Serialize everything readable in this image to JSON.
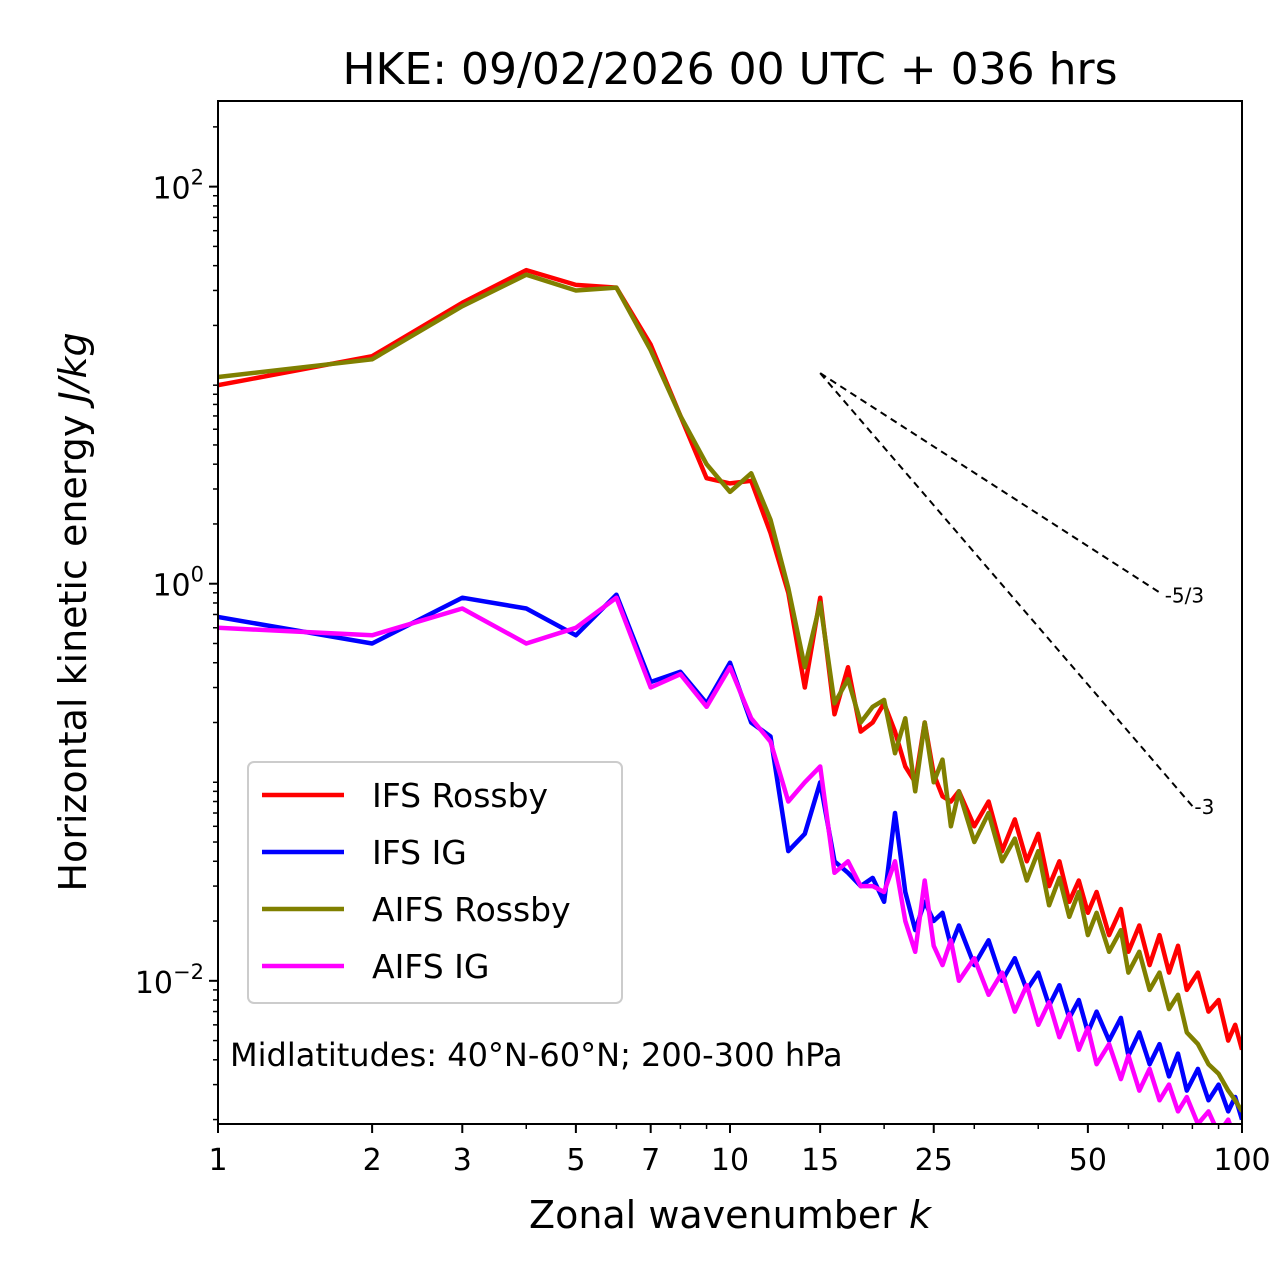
{
  "chart_data": {
    "type": "line",
    "title": "HKE: 09/02/2026 00 UTC + 036 hrs",
    "xlabel": "Zonal wavenumber",
    "xlabel_symbol": "k",
    "ylabel": "Horizontal kinetic energy",
    "ylabel_units": "J/kg",
    "xscale": "log",
    "yscale": "log",
    "xlim": [
      1,
      100
    ],
    "ylim": [
      0.0019,
      270
    ],
    "x_ticks": [
      1,
      2,
      3,
      5,
      7,
      10,
      15,
      25,
      50,
      100
    ],
    "x_tick_labels": [
      "1",
      "2",
      "3",
      "5",
      "7",
      "10",
      "15",
      "25",
      "50",
      "100"
    ],
    "y_ticks": [
      {
        "base": "10",
        "exp": "2",
        "value": 100
      },
      {
        "base": "10",
        "exp": "0",
        "value": 1
      },
      {
        "base": "10",
        "exp": "−2",
        "value": 0.01
      }
    ],
    "annotation": "Midlatitudes: 40°N-60°N; 200-300 hPa",
    "legend_position": "lower-left",
    "reference_slopes": [
      {
        "label": "-5/3",
        "slope": -1.6667,
        "x0": 15,
        "y0": 11.5,
        "x1": 70
      },
      {
        "label": "-3",
        "slope": -3,
        "x0": 15,
        "y0": 11.5,
        "x1": 80
      }
    ],
    "series": [
      {
        "name": "IFS Rossby",
        "color": "#ff0000",
        "points": [
          [
            1,
            10
          ],
          [
            2,
            14
          ],
          [
            3,
            26
          ],
          [
            4,
            38
          ],
          [
            5,
            32
          ],
          [
            6,
            31
          ],
          [
            7,
            16
          ],
          [
            8,
            7
          ],
          [
            9,
            3.4
          ],
          [
            10,
            3.2
          ],
          [
            11,
            3.3
          ],
          [
            12,
            1.8
          ],
          [
            13,
            0.9
          ],
          [
            14,
            0.3
          ],
          [
            15,
            0.85
          ],
          [
            16,
            0.22
          ],
          [
            17,
            0.38
          ],
          [
            18,
            0.18
          ],
          [
            19,
            0.2
          ],
          [
            20,
            0.25
          ],
          [
            21,
            0.18
          ],
          [
            22,
            0.12
          ],
          [
            23,
            0.1
          ],
          [
            24,
            0.2
          ],
          [
            25,
            0.11
          ],
          [
            26,
            0.085
          ],
          [
            27,
            0.08
          ],
          [
            28,
            0.09
          ],
          [
            30,
            0.06
          ],
          [
            32,
            0.08
          ],
          [
            34,
            0.045
          ],
          [
            36,
            0.065
          ],
          [
            38,
            0.04
          ],
          [
            40,
            0.055
          ],
          [
            42,
            0.03
          ],
          [
            44,
            0.04
          ],
          [
            46,
            0.025
          ],
          [
            48,
            0.032
          ],
          [
            50,
            0.022
          ],
          [
            52,
            0.028
          ],
          [
            55,
            0.017
          ],
          [
            58,
            0.023
          ],
          [
            60,
            0.014
          ],
          [
            63,
            0.019
          ],
          [
            66,
            0.012
          ],
          [
            69,
            0.017
          ],
          [
            72,
            0.011
          ],
          [
            75,
            0.015
          ],
          [
            78,
            0.009
          ],
          [
            82,
            0.011
          ],
          [
            86,
            0.007
          ],
          [
            90,
            0.008
          ],
          [
            94,
            0.005
          ],
          [
            97,
            0.006
          ],
          [
            100,
            0.0045
          ]
        ]
      },
      {
        "name": "IFS IG",
        "color": "#0000ff",
        "points": [
          [
            1,
            0.68
          ],
          [
            2,
            0.5
          ],
          [
            3,
            0.85
          ],
          [
            4,
            0.75
          ],
          [
            5,
            0.55
          ],
          [
            6,
            0.88
          ],
          [
            7,
            0.32
          ],
          [
            8,
            0.36
          ],
          [
            9,
            0.25
          ],
          [
            10,
            0.4
          ],
          [
            11,
            0.2
          ],
          [
            12,
            0.17
          ],
          [
            13,
            0.045
          ],
          [
            14,
            0.055
          ],
          [
            15,
            0.1
          ],
          [
            16,
            0.04
          ],
          [
            17,
            0.035
          ],
          [
            18,
            0.03
          ],
          [
            19,
            0.033
          ],
          [
            20,
            0.025
          ],
          [
            21,
            0.07
          ],
          [
            22,
            0.028
          ],
          [
            23,
            0.018
          ],
          [
            24,
            0.025
          ],
          [
            25,
            0.02
          ],
          [
            26,
            0.022
          ],
          [
            27,
            0.015
          ],
          [
            28,
            0.019
          ],
          [
            30,
            0.012
          ],
          [
            32,
            0.016
          ],
          [
            34,
            0.01
          ],
          [
            36,
            0.013
          ],
          [
            38,
            0.009
          ],
          [
            40,
            0.011
          ],
          [
            42,
            0.0075
          ],
          [
            44,
            0.0095
          ],
          [
            46,
            0.0065
          ],
          [
            48,
            0.008
          ],
          [
            50,
            0.0055
          ],
          [
            52,
            0.007
          ],
          [
            55,
            0.005
          ],
          [
            58,
            0.0065
          ],
          [
            60,
            0.0042
          ],
          [
            63,
            0.0055
          ],
          [
            66,
            0.0038
          ],
          [
            69,
            0.0048
          ],
          [
            72,
            0.0033
          ],
          [
            75,
            0.0043
          ],
          [
            78,
            0.0028
          ],
          [
            82,
            0.0036
          ],
          [
            86,
            0.0025
          ],
          [
            90,
            0.003
          ],
          [
            94,
            0.0022
          ],
          [
            97,
            0.0026
          ],
          [
            100,
            0.002
          ]
        ]
      },
      {
        "name": "AIFS Rossby",
        "color": "#808000",
        "points": [
          [
            1,
            11
          ],
          [
            2,
            13.5
          ],
          [
            3,
            25
          ],
          [
            4,
            36
          ],
          [
            5,
            30
          ],
          [
            6,
            31
          ],
          [
            7,
            15
          ],
          [
            8,
            7
          ],
          [
            9,
            4
          ],
          [
            10,
            2.9
          ],
          [
            11,
            3.6
          ],
          [
            12,
            2.1
          ],
          [
            13,
            0.95
          ],
          [
            14,
            0.38
          ],
          [
            15,
            0.8
          ],
          [
            16,
            0.25
          ],
          [
            17,
            0.33
          ],
          [
            18,
            0.2
          ],
          [
            19,
            0.24
          ],
          [
            20,
            0.26
          ],
          [
            21,
            0.14
          ],
          [
            22,
            0.21
          ],
          [
            23,
            0.09
          ],
          [
            24,
            0.2
          ],
          [
            25,
            0.1
          ],
          [
            26,
            0.13
          ],
          [
            27,
            0.06
          ],
          [
            28,
            0.09
          ],
          [
            30,
            0.05
          ],
          [
            32,
            0.07
          ],
          [
            34,
            0.04
          ],
          [
            36,
            0.052
          ],
          [
            38,
            0.032
          ],
          [
            40,
            0.045
          ],
          [
            42,
            0.024
          ],
          [
            44,
            0.033
          ],
          [
            46,
            0.021
          ],
          [
            48,
            0.028
          ],
          [
            50,
            0.017
          ],
          [
            52,
            0.022
          ],
          [
            55,
            0.014
          ],
          [
            58,
            0.018
          ],
          [
            60,
            0.011
          ],
          [
            63,
            0.014
          ],
          [
            66,
            0.009
          ],
          [
            69,
            0.011
          ],
          [
            72,
            0.0072
          ],
          [
            75,
            0.0085
          ],
          [
            78,
            0.0055
          ],
          [
            82,
            0.0048
          ],
          [
            86,
            0.0038
          ],
          [
            90,
            0.0034
          ],
          [
            94,
            0.0028
          ],
          [
            97,
            0.0025
          ],
          [
            100,
            0.0022
          ]
        ]
      },
      {
        "name": "AIFS IG",
        "color": "#ff00ff",
        "points": [
          [
            1,
            0.6
          ],
          [
            2,
            0.55
          ],
          [
            3,
            0.75
          ],
          [
            4,
            0.5
          ],
          [
            5,
            0.6
          ],
          [
            6,
            0.85
          ],
          [
            7,
            0.3
          ],
          [
            8,
            0.35
          ],
          [
            9,
            0.24
          ],
          [
            10,
            0.38
          ],
          [
            11,
            0.21
          ],
          [
            12,
            0.16
          ],
          [
            13,
            0.08
          ],
          [
            14,
            0.1
          ],
          [
            15,
            0.12
          ],
          [
            16,
            0.035
          ],
          [
            17,
            0.04
          ],
          [
            18,
            0.03
          ],
          [
            19,
            0.03
          ],
          [
            20,
            0.028
          ],
          [
            21,
            0.04
          ],
          [
            22,
            0.02
          ],
          [
            23,
            0.014
          ],
          [
            24,
            0.032
          ],
          [
            25,
            0.015
          ],
          [
            26,
            0.012
          ],
          [
            27,
            0.016
          ],
          [
            28,
            0.01
          ],
          [
            30,
            0.013
          ],
          [
            32,
            0.0085
          ],
          [
            34,
            0.011
          ],
          [
            36,
            0.007
          ],
          [
            38,
            0.0095
          ],
          [
            40,
            0.006
          ],
          [
            42,
            0.0078
          ],
          [
            44,
            0.0052
          ],
          [
            46,
            0.0068
          ],
          [
            48,
            0.0045
          ],
          [
            50,
            0.0058
          ],
          [
            52,
            0.0038
          ],
          [
            55,
            0.0048
          ],
          [
            58,
            0.0032
          ],
          [
            60,
            0.0042
          ],
          [
            63,
            0.0028
          ],
          [
            66,
            0.0036
          ],
          [
            69,
            0.0025
          ],
          [
            72,
            0.003
          ],
          [
            75,
            0.0022
          ],
          [
            78,
            0.0026
          ],
          [
            82,
            0.0019
          ],
          [
            86,
            0.0022
          ],
          [
            90,
            0.0017
          ],
          [
            94,
            0.002
          ],
          [
            97,
            0.0016
          ],
          [
            100,
            0.0017
          ]
        ]
      }
    ]
  }
}
